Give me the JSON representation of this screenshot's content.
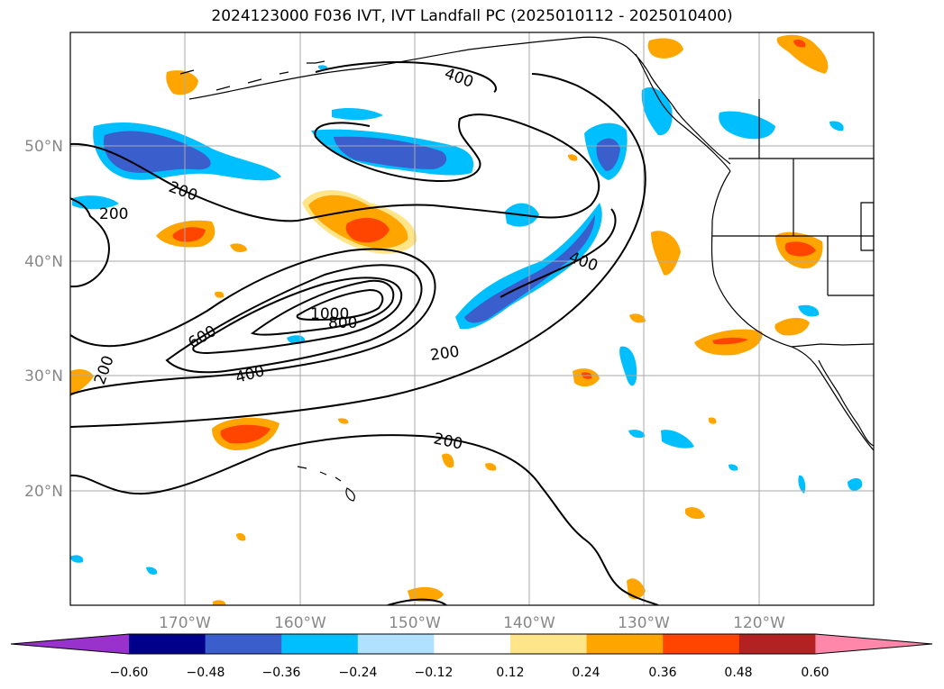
{
  "title": "2024123000 F036 IVT, IVT Landfall PC (2025010112 - 2025010400)",
  "map": {
    "lon_range": [
      -180,
      -110
    ],
    "lat_range": [
      10,
      60
    ],
    "lat_ticks": [
      "20°N",
      "30°N",
      "40°N",
      "50°N"
    ],
    "lon_ticks": [
      "170°W",
      "160°W",
      "150°W",
      "140°W",
      "130°W",
      "120°W"
    ],
    "gridlines": true,
    "contour_labels": [
      "400",
      "200",
      "200",
      "1000",
      "800",
      "600",
      "400",
      "400",
      "200",
      "200",
      "200"
    ]
  },
  "colorbar": {
    "ticks": [
      "−0.60",
      "−0.48",
      "−0.36",
      "−0.24",
      "−0.12",
      "0.12",
      "0.24",
      "0.36",
      "0.48",
      "0.60"
    ],
    "colors": [
      "#9932cc",
      "#00008b",
      "#3a5fcd",
      "#00bfff",
      "#b0e2ff",
      "#ffffff",
      "#ffe58a",
      "#ffa500",
      "#ff4500",
      "#b22222",
      "#ff88aa"
    ]
  }
}
